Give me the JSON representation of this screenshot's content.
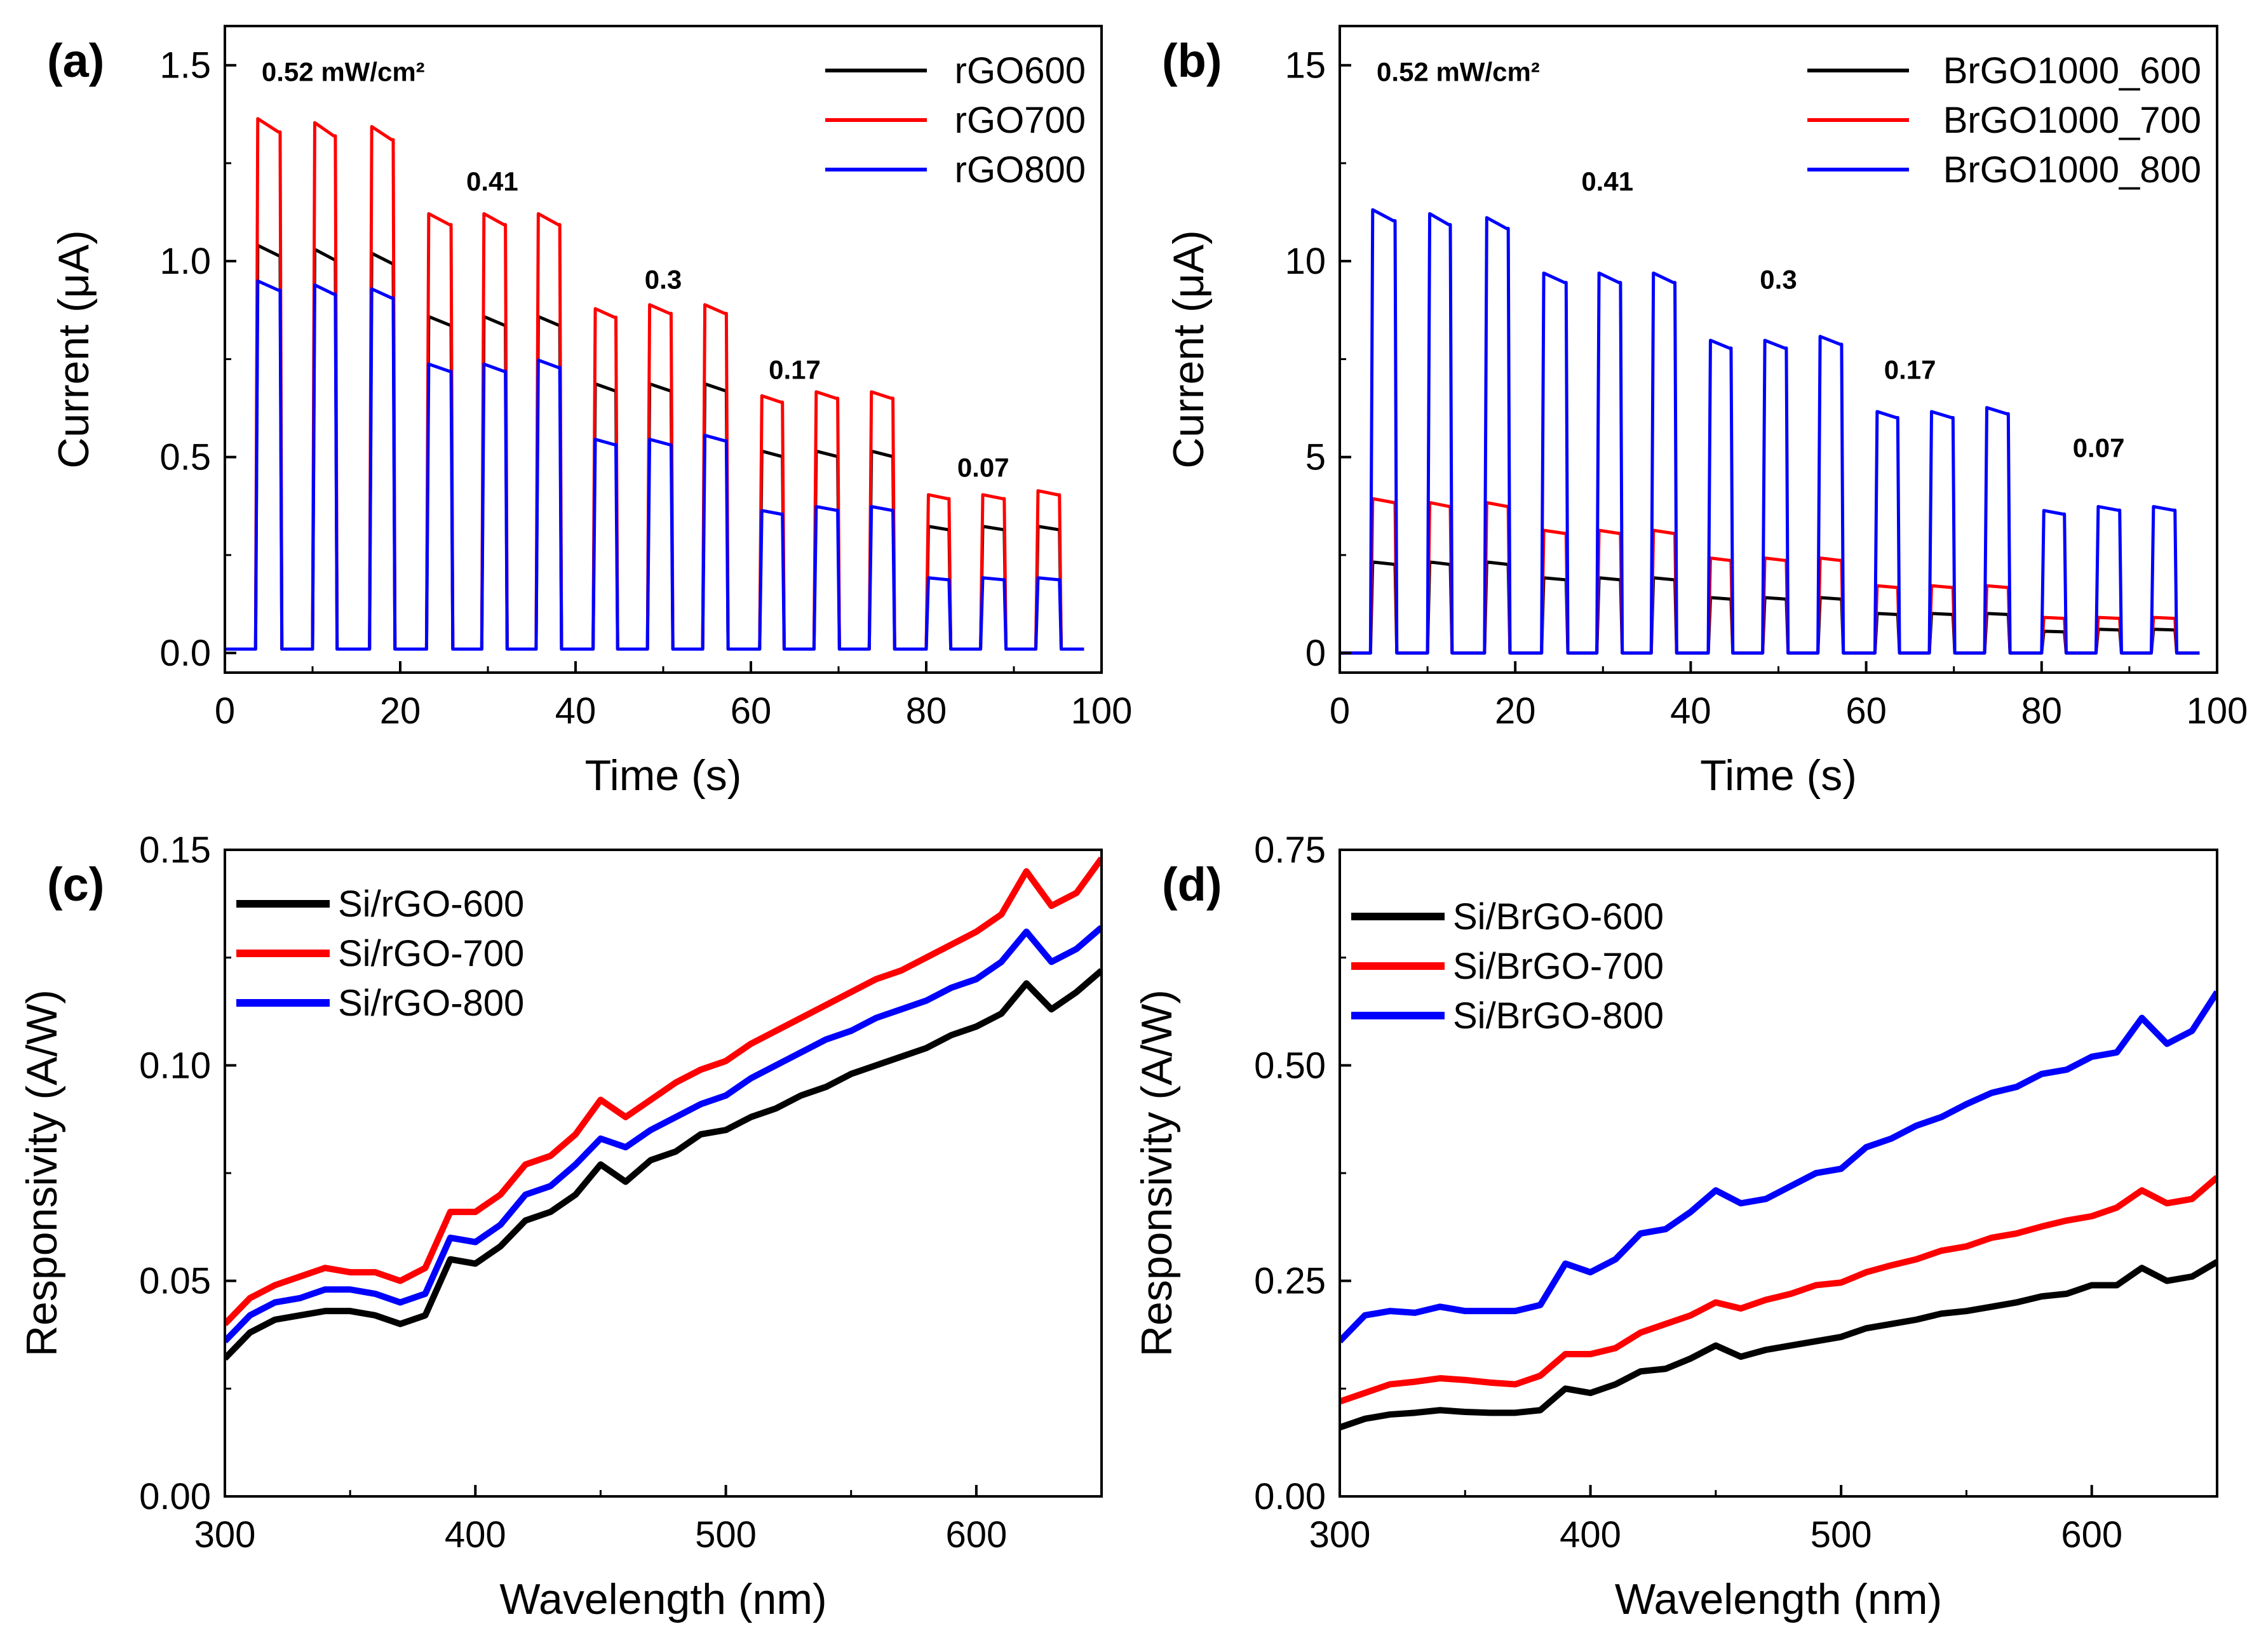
{
  "chart_data": [
    {
      "panel_label": "(a)",
      "type": "line",
      "xlabel": "Time (s)",
      "ylabel": "Current (μA)",
      "xlim": [
        0,
        100
      ],
      "ylim": [
        -0.05,
        1.6
      ],
      "xticks": [
        "0",
        "20",
        "40",
        "60",
        "80",
        "100"
      ],
      "yticks": [
        "0.0",
        "0.5",
        "1.0",
        "1.5"
      ],
      "grid": false,
      "legend_position": "top-right",
      "baseline": 0.01,
      "pulses": [
        [
          3.5,
          6.3
        ],
        [
          10,
          12.6
        ],
        [
          16.5,
          19.2
        ],
        [
          23,
          25.8
        ],
        [
          29.3,
          32
        ],
        [
          35.5,
          38.2
        ],
        [
          42,
          44.6
        ],
        [
          48.2,
          50.9
        ],
        [
          54.5,
          57.2
        ],
        [
          61,
          63.6
        ],
        [
          67.2,
          69.9
        ],
        [
          73.5,
          76.2
        ],
        [
          80,
          82.6
        ],
        [
          86.2,
          88.9
        ],
        [
          92.5,
          95.2
        ]
      ],
      "annotations": [
        "0.52 mW/cm²",
        "0.41",
        "0.3",
        "0.17",
        "0.07"
      ],
      "series": [
        {
          "name": "rGO600",
          "color": "#000000",
          "levels": [
            1.03,
            1.02,
            1.01,
            0.85,
            0.85,
            0.85,
            0.68,
            0.68,
            0.68,
            0.51,
            0.51,
            0.51,
            0.32,
            0.32,
            0.32
          ]
        },
        {
          "name": "rGO700",
          "color": "#ff0000",
          "levels": [
            1.35,
            1.34,
            1.33,
            1.11,
            1.11,
            1.11,
            0.87,
            0.88,
            0.88,
            0.65,
            0.66,
            0.66,
            0.4,
            0.4,
            0.41
          ]
        },
        {
          "name": "rGO800",
          "color": "#0000ff",
          "levels": [
            0.94,
            0.93,
            0.92,
            0.73,
            0.73,
            0.74,
            0.54,
            0.54,
            0.55,
            0.36,
            0.37,
            0.37,
            0.19,
            0.19,
            0.19
          ]
        }
      ]
    },
    {
      "panel_label": "(b)",
      "type": "line",
      "xlabel": "Time (s)",
      "ylabel": "Current (μA)",
      "xlim": [
        0,
        100
      ],
      "ylim": [
        -0.5,
        16
      ],
      "xticks": [
        "0",
        "20",
        "40",
        "60",
        "80",
        "100"
      ],
      "yticks": [
        "0",
        "5",
        "10",
        "15"
      ],
      "grid": false,
      "legend_position": "top-right",
      "baseline": 0.0,
      "pulses": [
        [
          3.5,
          6.3
        ],
        [
          10,
          12.6
        ],
        [
          16.5,
          19.2
        ],
        [
          23,
          25.8
        ],
        [
          29.3,
          32
        ],
        [
          35.5,
          38.2
        ],
        [
          42,
          44.6
        ],
        [
          48.2,
          50.9
        ],
        [
          54.5,
          57.2
        ],
        [
          61,
          63.6
        ],
        [
          67.2,
          69.9
        ],
        [
          73.5,
          76.2
        ],
        [
          80,
          82.6
        ],
        [
          86.2,
          88.9
        ],
        [
          92.5,
          95.2
        ]
      ],
      "annotations": [
        "0.52 mW/cm²",
        "0.41",
        "0.3",
        "0.17",
        "0.07"
      ],
      "series": [
        {
          "name": "BrGO1000_600",
          "color": "#000000",
          "levels": [
            2.3,
            2.3,
            2.3,
            1.9,
            1.9,
            1.9,
            1.4,
            1.4,
            1.4,
            1.0,
            1.0,
            1.0,
            0.55,
            0.6,
            0.6
          ]
        },
        {
          "name": "BrGO1000_700",
          "color": "#ff0000",
          "levels": [
            3.9,
            3.8,
            3.8,
            3.1,
            3.1,
            3.1,
            2.4,
            2.4,
            2.4,
            1.7,
            1.7,
            1.7,
            0.9,
            0.9,
            0.9
          ]
        },
        {
          "name": "BrGO1000_800",
          "color": "#0000ff",
          "levels": [
            11.2,
            11.1,
            11.0,
            9.6,
            9.6,
            9.6,
            7.9,
            7.9,
            8.0,
            6.1,
            6.1,
            6.2,
            3.6,
            3.7,
            3.7
          ]
        }
      ]
    },
    {
      "panel_label": "(c)",
      "type": "line",
      "xlabel": "Wavelength (nm)",
      "ylabel": "Responsivity (A/W)",
      "xlim": [
        300,
        650
      ],
      "ylim": [
        0,
        0.15
      ],
      "xticks": [
        "300",
        "400",
        "500",
        "600"
      ],
      "yticks": [
        "0.00",
        "0.05",
        "0.10",
        "0.15"
      ],
      "grid": false,
      "legend_position": "top-left",
      "x": [
        300,
        310,
        320,
        330,
        340,
        350,
        360,
        370,
        380,
        390,
        400,
        410,
        420,
        430,
        440,
        450,
        460,
        470,
        480,
        490,
        500,
        510,
        520,
        530,
        540,
        550,
        560,
        570,
        580,
        590,
        600,
        610,
        620,
        630,
        640,
        650
      ],
      "series": [
        {
          "name": "Si/rGO-600",
          "color": "#000000",
          "values": [
            0.032,
            0.038,
            0.041,
            0.042,
            0.043,
            0.043,
            0.042,
            0.04,
            0.042,
            0.055,
            0.054,
            0.058,
            0.064,
            0.066,
            0.07,
            0.077,
            0.073,
            0.078,
            0.08,
            0.084,
            0.085,
            0.088,
            0.09,
            0.093,
            0.095,
            0.098,
            0.1,
            0.102,
            0.104,
            0.107,
            0.109,
            0.112,
            0.119,
            0.113,
            0.117,
            0.122
          ]
        },
        {
          "name": "Si/rGO-700",
          "color": "#ff0000",
          "values": [
            0.04,
            0.046,
            0.049,
            0.051,
            0.053,
            0.052,
            0.052,
            0.05,
            0.053,
            0.066,
            0.066,
            0.07,
            0.077,
            0.079,
            0.084,
            0.092,
            0.088,
            0.092,
            0.096,
            0.099,
            0.101,
            0.105,
            0.108,
            0.111,
            0.114,
            0.117,
            0.12,
            0.122,
            0.125,
            0.128,
            0.131,
            0.135,
            0.145,
            0.137,
            0.14,
            0.148
          ]
        },
        {
          "name": "Si/rGO-800",
          "color": "#0000ff",
          "values": [
            0.036,
            0.042,
            0.045,
            0.046,
            0.048,
            0.048,
            0.047,
            0.045,
            0.047,
            0.06,
            0.059,
            0.063,
            0.07,
            0.072,
            0.077,
            0.083,
            0.081,
            0.085,
            0.088,
            0.091,
            0.093,
            0.097,
            0.1,
            0.103,
            0.106,
            0.108,
            0.111,
            0.113,
            0.115,
            0.118,
            0.12,
            0.124,
            0.131,
            0.124,
            0.127,
            0.132
          ]
        }
      ]
    },
    {
      "panel_label": "(d)",
      "type": "line",
      "xlabel": "Wavelength (nm)",
      "ylabel": "Responsivity (A/W)",
      "xlim": [
        300,
        650
      ],
      "ylim": [
        0,
        0.75
      ],
      "xticks": [
        "300",
        "400",
        "500",
        "600"
      ],
      "yticks": [
        "0.00",
        "0.25",
        "0.50",
        "0.75"
      ],
      "grid": false,
      "legend_position": "top-left",
      "x": [
        300,
        310,
        320,
        330,
        340,
        350,
        360,
        370,
        380,
        390,
        400,
        410,
        420,
        430,
        440,
        450,
        460,
        470,
        480,
        490,
        500,
        510,
        520,
        530,
        540,
        550,
        560,
        570,
        580,
        590,
        600,
        610,
        620,
        630,
        640,
        650
      ],
      "series": [
        {
          "name": "Si/BrGO-600",
          "color": "#000000",
          "values": [
            0.08,
            0.09,
            0.095,
            0.097,
            0.1,
            0.098,
            0.097,
            0.097,
            0.1,
            0.125,
            0.12,
            0.13,
            0.145,
            0.148,
            0.16,
            0.175,
            0.162,
            0.17,
            0.175,
            0.18,
            0.185,
            0.195,
            0.2,
            0.205,
            0.212,
            0.215,
            0.22,
            0.225,
            0.232,
            0.235,
            0.245,
            0.245,
            0.265,
            0.25,
            0.255,
            0.272
          ]
        },
        {
          "name": "Si/BrGO-700",
          "color": "#ff0000",
          "values": [
            0.11,
            0.12,
            0.13,
            0.133,
            0.137,
            0.135,
            0.132,
            0.13,
            0.14,
            0.165,
            0.165,
            0.172,
            0.19,
            0.2,
            0.21,
            0.225,
            0.218,
            0.228,
            0.235,
            0.245,
            0.248,
            0.26,
            0.268,
            0.275,
            0.285,
            0.29,
            0.3,
            0.305,
            0.313,
            0.32,
            0.325,
            0.335,
            0.355,
            0.34,
            0.345,
            0.37
          ]
        },
        {
          "name": "Si/BrGO-800",
          "color": "#0000ff",
          "values": [
            0.18,
            0.21,
            0.215,
            0.213,
            0.22,
            0.215,
            0.215,
            0.215,
            0.222,
            0.27,
            0.26,
            0.275,
            0.305,
            0.31,
            0.33,
            0.355,
            0.34,
            0.345,
            0.36,
            0.375,
            0.38,
            0.405,
            0.415,
            0.43,
            0.44,
            0.455,
            0.468,
            0.475,
            0.49,
            0.495,
            0.51,
            0.515,
            0.555,
            0.525,
            0.54,
            0.585
          ]
        }
      ]
    }
  ]
}
